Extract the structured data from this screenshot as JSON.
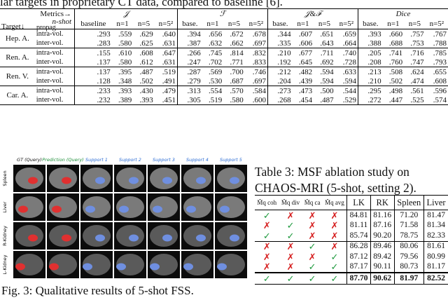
{
  "top_caption": "lar targets in proprietary CT data, compared to baseline [6].",
  "table1": {
    "metrics_label": "Metrics→",
    "nshot_label": "n-shot",
    "target_label": "Target↓",
    "propag_label": "propag.",
    "groups": [
      "𝒥",
      "ℱ",
      "𝒥&ℱ",
      "Dice"
    ],
    "subheaders": [
      [
        "baseline",
        "n=1",
        "n=5",
        "n=5²"
      ],
      [
        "base.",
        "n=1",
        "n=5",
        "n=5²"
      ],
      [
        "base.",
        "n=1",
        "n=5",
        "n=5²"
      ],
      [
        "base.",
        "n=1",
        "n=5",
        "n=5²"
      ]
    ],
    "rows": [
      {
        "target": "Hep. A.",
        "sub": [
          {
            "propag": "intra-vol.",
            "values": [
              ".293",
              ".559",
              ".629",
              ".640",
              ".394",
              ".656",
              ".672",
              ".678",
              ".344",
              ".607",
              ".651",
              ".659",
              ".393",
              ".660",
              ".757",
              ".767"
            ]
          },
          {
            "propag": "inter-vol.",
            "values": [
              ".283",
              ".580",
              ".625",
              ".631",
              ".387",
              ".632",
              ".662",
              ".697",
              ".335",
              ".606",
              ".643",
              ".664",
              ".388",
              ".688",
              ".753",
              ".788"
            ]
          }
        ]
      },
      {
        "target": "Ren. A.",
        "sub": [
          {
            "propag": "intra-vol.",
            "values": [
              ".155",
              ".610",
              ".608",
              ".647",
              ".266",
              ".745",
              ".814",
              ".832",
              ".210",
              ".677",
              ".711",
              ".740",
              ".205",
              ".741",
              ".716",
              ".785"
            ]
          },
          {
            "propag": "inter-vol.",
            "values": [
              ".137",
              ".580",
              ".612",
              ".631",
              ".247",
              ".702",
              ".771",
              ".833",
              ".192",
              ".645",
              ".692",
              ".728",
              ".208",
              ".760",
              ".747",
              ".793"
            ]
          }
        ]
      },
      {
        "target": "Ren. V.",
        "sub": [
          {
            "propag": "intra-vol.",
            "values": [
              ".137",
              ".395",
              ".487",
              ".519",
              ".287",
              ".569",
              ".700",
              ".746",
              ".212",
              ".482",
              ".594",
              ".633",
              ".213",
              ".508",
              ".624",
              ".655"
            ]
          },
          {
            "propag": "inter-vol.",
            "values": [
              ".128",
              ".348",
              ".502",
              ".491",
              ".279",
              ".530",
              ".687",
              ".697",
              ".204",
              ".439",
              ".594",
              ".594",
              ".210",
              ".502",
              ".474",
              ".608"
            ]
          }
        ]
      },
      {
        "target": "Car. A.",
        "sub": [
          {
            "propag": "intra-vol.",
            "values": [
              ".233",
              ".393",
              ".430",
              ".479",
              ".313",
              ".554",
              ".570",
              ".584",
              ".273",
              ".473",
              ".500",
              ".544",
              ".295",
              ".498",
              ".561",
              ".596"
            ]
          },
          {
            "propag": "inter-vol.",
            "values": [
              ".232",
              ".389",
              ".393",
              ".451",
              ".305",
              ".519",
              ".580",
              ".600",
              ".268",
              ".454",
              ".487",
              ".529",
              ".272",
              ".447",
              ".525",
              ".574"
            ]
          }
        ]
      }
    ]
  },
  "figure": {
    "columns": [
      "GT (Query)",
      "Prediction (Query)",
      "Support 1",
      "Support 2",
      "Support 3",
      "Support 4",
      "Support 5"
    ],
    "rows": [
      "Spleen",
      "Liver",
      "R-Kidney",
      "L-Kidney"
    ],
    "caption": "Fig. 3: Qualitative results of 5-shot FSS."
  },
  "table3": {
    "caption": "Table 3: MSF ablation study on CHAOS-MRI (5-shot, setting 2).",
    "header": [
      "M̂q coh",
      "M̂q div",
      "M̂q ca",
      "M̂q avg",
      "LK",
      "RK",
      "Spleen",
      "Liver"
    ],
    "rows": [
      [
        "✓",
        "✗",
        "✗",
        "✗",
        "84.81",
        "81.16",
        "71.20",
        "81.47"
      ],
      [
        "✗",
        "✓",
        "✗",
        "✗",
        "81.11",
        "87.16",
        "71.58",
        "81.34"
      ],
      [
        "✓",
        "✓",
        "✗",
        "✗",
        "85.74",
        "90.20",
        "78.75",
        "82.33"
      ],
      [
        "✗",
        "✗",
        "✓",
        "✗",
        "86.28",
        "89.46",
        "80.06",
        "81.61"
      ],
      [
        "✗",
        "✗",
        "✗",
        "✓",
        "87.12",
        "89.42",
        "79.56",
        "80.99"
      ],
      [
        "✗",
        "✗",
        "✓",
        "✓",
        "87.17",
        "90.11",
        "80.73",
        "81.17"
      ],
      [
        "✓",
        "✓",
        "✓",
        "✓",
        "87.70",
        "90.62",
        "81.97",
        "82.52"
      ]
    ]
  }
}
